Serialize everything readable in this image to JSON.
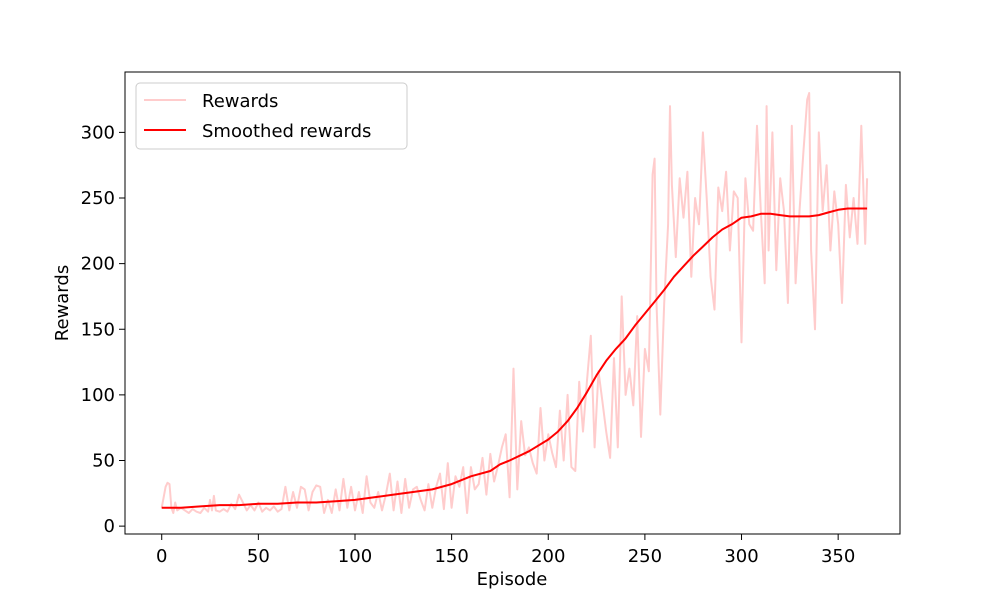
{
  "chart_data": {
    "type": "line",
    "title": "",
    "xlabel": "Episode",
    "ylabel": "Rewards",
    "xlim": [
      -19,
      382
    ],
    "ylim": [
      -6,
      346
    ],
    "xticks": [
      0,
      50,
      100,
      150,
      200,
      250,
      300,
      350
    ],
    "yticks": [
      0,
      50,
      100,
      150,
      200,
      250,
      300
    ],
    "grid": false,
    "legend_position": "top-left",
    "series": [
      {
        "name": "Rewards",
        "color": "#ffcccc",
        "points": [
          [
            0,
            14
          ],
          [
            2,
            30
          ],
          [
            3,
            33
          ],
          [
            4,
            32
          ],
          [
            5,
            14
          ],
          [
            6,
            10
          ],
          [
            7,
            18
          ],
          [
            8,
            12
          ],
          [
            10,
            14
          ],
          [
            12,
            12
          ],
          [
            14,
            10
          ],
          [
            16,
            13
          ],
          [
            18,
            11
          ],
          [
            20,
            10
          ],
          [
            22,
            14
          ],
          [
            24,
            11
          ],
          [
            25,
            20
          ],
          [
            26,
            12
          ],
          [
            27,
            23
          ],
          [
            28,
            12
          ],
          [
            30,
            11
          ],
          [
            32,
            13
          ],
          [
            34,
            11
          ],
          [
            36,
            17
          ],
          [
            38,
            13
          ],
          [
            40,
            24
          ],
          [
            42,
            18
          ],
          [
            44,
            12
          ],
          [
            46,
            16
          ],
          [
            48,
            12
          ],
          [
            50,
            18
          ],
          [
            52,
            11
          ],
          [
            54,
            14
          ],
          [
            56,
            12
          ],
          [
            58,
            15
          ],
          [
            60,
            11
          ],
          [
            62,
            13
          ],
          [
            64,
            30
          ],
          [
            66,
            12
          ],
          [
            68,
            26
          ],
          [
            70,
            14
          ],
          [
            72,
            30
          ],
          [
            74,
            28
          ],
          [
            76,
            12
          ],
          [
            78,
            26
          ],
          [
            80,
            31
          ],
          [
            82,
            30
          ],
          [
            84,
            10
          ],
          [
            86,
            20
          ],
          [
            88,
            10
          ],
          [
            90,
            28
          ],
          [
            92,
            12
          ],
          [
            94,
            36
          ],
          [
            96,
            14
          ],
          [
            98,
            30
          ],
          [
            100,
            12
          ],
          [
            102,
            26
          ],
          [
            104,
            10
          ],
          [
            106,
            38
          ],
          [
            108,
            18
          ],
          [
            110,
            14
          ],
          [
            112,
            26
          ],
          [
            114,
            12
          ],
          [
            116,
            24
          ],
          [
            118,
            40
          ],
          [
            120,
            12
          ],
          [
            122,
            34
          ],
          [
            124,
            10
          ],
          [
            126,
            36
          ],
          [
            128,
            14
          ],
          [
            130,
            28
          ],
          [
            132,
            30
          ],
          [
            134,
            20
          ],
          [
            136,
            12
          ],
          [
            138,
            32
          ],
          [
            140,
            14
          ],
          [
            142,
            30
          ],
          [
            144,
            40
          ],
          [
            146,
            13
          ],
          [
            148,
            48
          ],
          [
            150,
            14
          ],
          [
            152,
            38
          ],
          [
            154,
            30
          ],
          [
            156,
            45
          ],
          [
            158,
            10
          ],
          [
            160,
            45
          ],
          [
            162,
            28
          ],
          [
            164,
            32
          ],
          [
            166,
            52
          ],
          [
            168,
            24
          ],
          [
            170,
            55
          ],
          [
            172,
            34
          ],
          [
            174,
            46
          ],
          [
            176,
            60
          ],
          [
            178,
            70
          ],
          [
            180,
            22
          ],
          [
            182,
            120
          ],
          [
            184,
            28
          ],
          [
            186,
            80
          ],
          [
            188,
            54
          ],
          [
            190,
            60
          ],
          [
            192,
            48
          ],
          [
            194,
            40
          ],
          [
            196,
            90
          ],
          [
            198,
            50
          ],
          [
            200,
            70
          ],
          [
            202,
            56
          ],
          [
            204,
            45
          ],
          [
            206,
            88
          ],
          [
            208,
            50
          ],
          [
            210,
            100
          ],
          [
            212,
            45
          ],
          [
            214,
            42
          ],
          [
            216,
            110
          ],
          [
            218,
            72
          ],
          [
            220,
            110
          ],
          [
            222,
            145
          ],
          [
            224,
            60
          ],
          [
            226,
            118
          ],
          [
            228,
            95
          ],
          [
            230,
            72
          ],
          [
            232,
            52
          ],
          [
            234,
            128
          ],
          [
            236,
            60
          ],
          [
            238,
            175
          ],
          [
            240,
            100
          ],
          [
            242,
            120
          ],
          [
            244,
            92
          ],
          [
            246,
            160
          ],
          [
            248,
            68
          ],
          [
            250,
            135
          ],
          [
            252,
            118
          ],
          [
            254,
            268
          ],
          [
            255,
            280
          ],
          [
            256,
            170
          ],
          [
            258,
            85
          ],
          [
            260,
            170
          ],
          [
            262,
            230
          ],
          [
            263,
            320
          ],
          [
            264,
            260
          ],
          [
            266,
            205
          ],
          [
            268,
            265
          ],
          [
            270,
            235
          ],
          [
            272,
            270
          ],
          [
            274,
            190
          ],
          [
            276,
            250
          ],
          [
            278,
            230
          ],
          [
            280,
            300
          ],
          [
            282,
            250
          ],
          [
            284,
            190
          ],
          [
            286,
            165
          ],
          [
            288,
            258
          ],
          [
            290,
            240
          ],
          [
            292,
            270
          ],
          [
            294,
            210
          ],
          [
            296,
            255
          ],
          [
            298,
            250
          ],
          [
            300,
            140
          ],
          [
            302,
            265
          ],
          [
            304,
            230
          ],
          [
            306,
            225
          ],
          [
            308,
            305
          ],
          [
            310,
            240
          ],
          [
            312,
            185
          ],
          [
            313,
            320
          ],
          [
            314,
            210
          ],
          [
            316,
            300
          ],
          [
            318,
            195
          ],
          [
            320,
            265
          ],
          [
            322,
            240
          ],
          [
            324,
            170
          ],
          [
            326,
            305
          ],
          [
            328,
            185
          ],
          [
            330,
            240
          ],
          [
            332,
            285
          ],
          [
            334,
            325
          ],
          [
            335,
            330
          ],
          [
            336,
            210
          ],
          [
            338,
            150
          ],
          [
            340,
            300
          ],
          [
            342,
            240
          ],
          [
            344,
            275
          ],
          [
            346,
            210
          ],
          [
            348,
            255
          ],
          [
            350,
            230
          ],
          [
            352,
            170
          ],
          [
            354,
            260
          ],
          [
            356,
            220
          ],
          [
            358,
            250
          ],
          [
            360,
            215
          ],
          [
            362,
            305
          ],
          [
            364,
            215
          ],
          [
            365,
            265
          ]
        ]
      },
      {
        "name": "Smoothed rewards",
        "color": "#ff0000",
        "points": [
          [
            0,
            14
          ],
          [
            10,
            14
          ],
          [
            20,
            15
          ],
          [
            30,
            16
          ],
          [
            40,
            16
          ],
          [
            50,
            17
          ],
          [
            60,
            17
          ],
          [
            70,
            18
          ],
          [
            80,
            18
          ],
          [
            90,
            19
          ],
          [
            100,
            20
          ],
          [
            110,
            22
          ],
          [
            120,
            24
          ],
          [
            130,
            26
          ],
          [
            140,
            28
          ],
          [
            150,
            32
          ],
          [
            155,
            35
          ],
          [
            160,
            38
          ],
          [
            170,
            42
          ],
          [
            175,
            47
          ],
          [
            180,
            50
          ],
          [
            190,
            57
          ],
          [
            200,
            66
          ],
          [
            205,
            72
          ],
          [
            210,
            80
          ],
          [
            215,
            90
          ],
          [
            220,
            102
          ],
          [
            225,
            115
          ],
          [
            230,
            126
          ],
          [
            235,
            135
          ],
          [
            240,
            143
          ],
          [
            245,
            153
          ],
          [
            250,
            162
          ],
          [
            255,
            171
          ],
          [
            260,
            180
          ],
          [
            265,
            190
          ],
          [
            270,
            198
          ],
          [
            275,
            206
          ],
          [
            280,
            213
          ],
          [
            285,
            220
          ],
          [
            290,
            226
          ],
          [
            295,
            230
          ],
          [
            300,
            235
          ],
          [
            305,
            236
          ],
          [
            310,
            238
          ],
          [
            315,
            238
          ],
          [
            320,
            237
          ],
          [
            325,
            236
          ],
          [
            330,
            236
          ],
          [
            335,
            236
          ],
          [
            340,
            237
          ],
          [
            345,
            239
          ],
          [
            350,
            241
          ],
          [
            355,
            242
          ],
          [
            360,
            242
          ],
          [
            365,
            242
          ]
        ]
      }
    ]
  }
}
